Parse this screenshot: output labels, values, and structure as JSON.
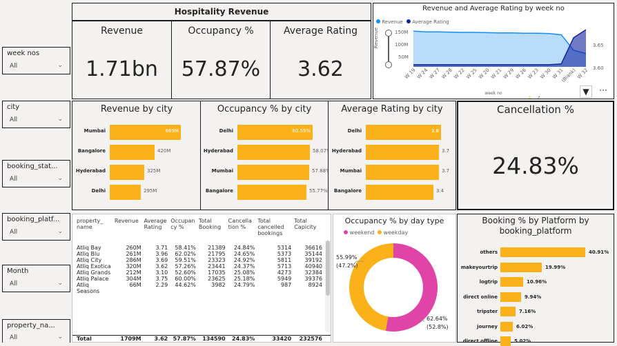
{
  "page_title": "Hospitality Revenue",
  "slicers": [
    {
      "label": "week nos",
      "value": "All"
    },
    {
      "label": "city",
      "value": "All"
    },
    {
      "label": "booking_stat...",
      "value": "All"
    },
    {
      "label": "booking_platf...",
      "value": "All"
    },
    {
      "label": "Month",
      "value": "All"
    },
    {
      "label": "property_na...",
      "value": "All"
    }
  ],
  "kpis": {
    "revenue": {
      "title": "Revenue",
      "value": "1.71bn"
    },
    "occupancy": {
      "title": "Occupancy %",
      "value": "57.87%"
    },
    "rating": {
      "title": "Average Rating",
      "value": "3.62"
    },
    "cancellation": {
      "title": "Cancellation %",
      "value": "24.83%"
    }
  },
  "weekly_chart": {
    "title": "Revenue and Average Rating by week no",
    "legend": [
      "Revenue",
      "Average Rating"
    ],
    "y_axis_label": "Revenue",
    "x_axis_label": "week no",
    "y_ticks": [
      "150M",
      "100M",
      "50M"
    ],
    "y2_ticks": [
      "3.65",
      "3.60"
    ],
    "x_ticks": [
      "W 19",
      "W 24",
      "W 27",
      "W 28",
      "W 22",
      "W 25",
      "W 20",
      "W 21",
      "W 29",
      "W 26",
      "W 23",
      "W 30",
      "W 31",
      "(Blank)",
      "W 32"
    ],
    "colors": {
      "revenue": "#118dff",
      "rating": "#12239e"
    }
  },
  "revenue_by_city": {
    "title": "Revenue by city",
    "items": [
      {
        "city": "Mumbai",
        "label": "669M"
      },
      {
        "city": "Bangalore",
        "label": "420M"
      },
      {
        "city": "Hyderabad",
        "label": "325M"
      },
      {
        "city": "Delhi",
        "label": "295M"
      }
    ]
  },
  "occupancy_by_city": {
    "title": "Occupancy % by city",
    "items": [
      {
        "city": "Delhi",
        "label": "60.55%"
      },
      {
        "city": "Hyderabad",
        "label": "58.07%"
      },
      {
        "city": "Mumbai",
        "label": "57.88%"
      },
      {
        "city": "Bangalore",
        "label": "55.77%"
      }
    ]
  },
  "rating_by_city": {
    "title": "Average Rating by city",
    "items": [
      {
        "city": "Delhi",
        "label": "3.8"
      },
      {
        "city": "Hyderabad",
        "label": "3.7"
      },
      {
        "city": "Mumbai",
        "label": "3.7"
      },
      {
        "city": "Bangalore",
        "label": "3.4"
      }
    ]
  },
  "property_table": {
    "headers": [
      "property_ name",
      "Revenue",
      "Average Rating",
      "Occupan cy %",
      "Total Booking",
      "Cancella tion %",
      "Total cancelled bookings",
      "Total Capicity"
    ],
    "rows": [
      [
        "Atliq Bay",
        "260M",
        "3.71",
        "58.41%",
        "21389",
        "24.84%",
        "5314",
        "36616"
      ],
      [
        "Atliq Blu",
        "261M",
        "3.96",
        "62.02%",
        "21795",
        "24.65%",
        "5373",
        "35144"
      ],
      [
        "Atliq City",
        "286M",
        "3.69",
        "59.51%",
        "23323",
        "24.92%",
        "5811",
        "39192"
      ],
      [
        "Atliq Exotica",
        "320M",
        "3.62",
        "57.26%",
        "23441",
        "24.37%",
        "5713",
        "40940"
      ],
      [
        "Atliq Grands",
        "212M",
        "3.10",
        "52.60%",
        "17035",
        "25.08%",
        "4273",
        "32384"
      ],
      [
        "Atliq Palace",
        "304M",
        "3.75",
        "60.00%",
        "23625",
        "25.18%",
        "5949",
        "39376"
      ],
      [
        "Atliq Seasons",
        "66M",
        "2.29",
        "44.62%",
        "3982",
        "24.79%",
        "987",
        "8924"
      ]
    ],
    "total": [
      "Total",
      "1709M",
      "3.62",
      "57.87%",
      "134590",
      "24.83%",
      "33420",
      "232576"
    ]
  },
  "donut": {
    "title": "Occupancy % by day type",
    "legend": [
      "weekend",
      "weekday"
    ],
    "weekday_label": "55.99%",
    "weekday_share": "(47.2%)",
    "weekend_label": "62.64%",
    "weekend_share": "(52.8%)",
    "colors": {
      "weekend": "#e044a7",
      "weekday": "#fbb21a"
    }
  },
  "platform_chart": {
    "title": "Booking % by Platform by booking_platform",
    "items": [
      {
        "platform": "others",
        "label": "40.91%"
      },
      {
        "platform": "makeyourtrip",
        "label": "19.99%"
      },
      {
        "platform": "logtrip",
        "label": "10.96%"
      },
      {
        "platform": "direct online",
        "label": "9.94%"
      },
      {
        "platform": "tripster",
        "label": "7.16%"
      },
      {
        "platform": "journey",
        "label": "6.02%"
      },
      {
        "platform": "direct offline",
        "label": "5.02%"
      }
    ]
  },
  "chart_data": [
    {
      "type": "area",
      "title": "Revenue and Average Rating by week no",
      "x": [
        "W 19",
        "W 24",
        "W 27",
        "W 28",
        "W 22",
        "W 25",
        "W 20",
        "W 21",
        "W 29",
        "W 26",
        "W 23",
        "W 30",
        "W 31",
        "(Blank)",
        "W 32"
      ],
      "series": [
        {
          "name": "Revenue",
          "axis": "left",
          "values": [
            134,
            131,
            131,
            130,
            129,
            129,
            128,
            127,
            127,
            126,
            126,
            125,
            120,
            62,
            50
          ]
        },
        {
          "name": "Average Rating",
          "axis": "right",
          "values": [
            3.585,
            3.585,
            3.585,
            3.585,
            3.585,
            3.585,
            3.585,
            3.585,
            3.585,
            3.585,
            3.585,
            3.585,
            3.587,
            3.648,
            3.667
          ]
        }
      ],
      "xlabel": "week no",
      "ylabel": "Revenue",
      "ylim": [
        0,
        160
      ],
      "y2lim": [
        3.58,
        3.68
      ]
    },
    {
      "type": "bar",
      "title": "Revenue by city",
      "categories": [
        "Mumbai",
        "Bangalore",
        "Hyderabad",
        "Delhi"
      ],
      "values": [
        669,
        420,
        325,
        295
      ],
      "unit": "M"
    },
    {
      "type": "bar",
      "title": "Occupancy % by city",
      "categories": [
        "Delhi",
        "Hyderabad",
        "Mumbai",
        "Bangalore"
      ],
      "values": [
        60.55,
        58.07,
        57.88,
        55.77
      ],
      "unit": "%"
    },
    {
      "type": "bar",
      "title": "Average Rating by city",
      "categories": [
        "Delhi",
        "Hyderabad",
        "Mumbai",
        "Bangalore"
      ],
      "values": [
        3.8,
        3.7,
        3.7,
        3.4
      ]
    },
    {
      "type": "pie",
      "title": "Occupancy % by day type",
      "categories": [
        "weekend",
        "weekday"
      ],
      "values": [
        62.64,
        55.99
      ],
      "shares": [
        52.8,
        47.2
      ]
    },
    {
      "type": "bar",
      "title": "Booking % by Platform by booking_platform",
      "categories": [
        "others",
        "makeyourtrip",
        "logtrip",
        "direct online",
        "tripster",
        "journey",
        "direct offline"
      ],
      "values": [
        40.91,
        19.99,
        10.96,
        9.94,
        7.16,
        6.02,
        5.02
      ],
      "unit": "%"
    }
  ]
}
